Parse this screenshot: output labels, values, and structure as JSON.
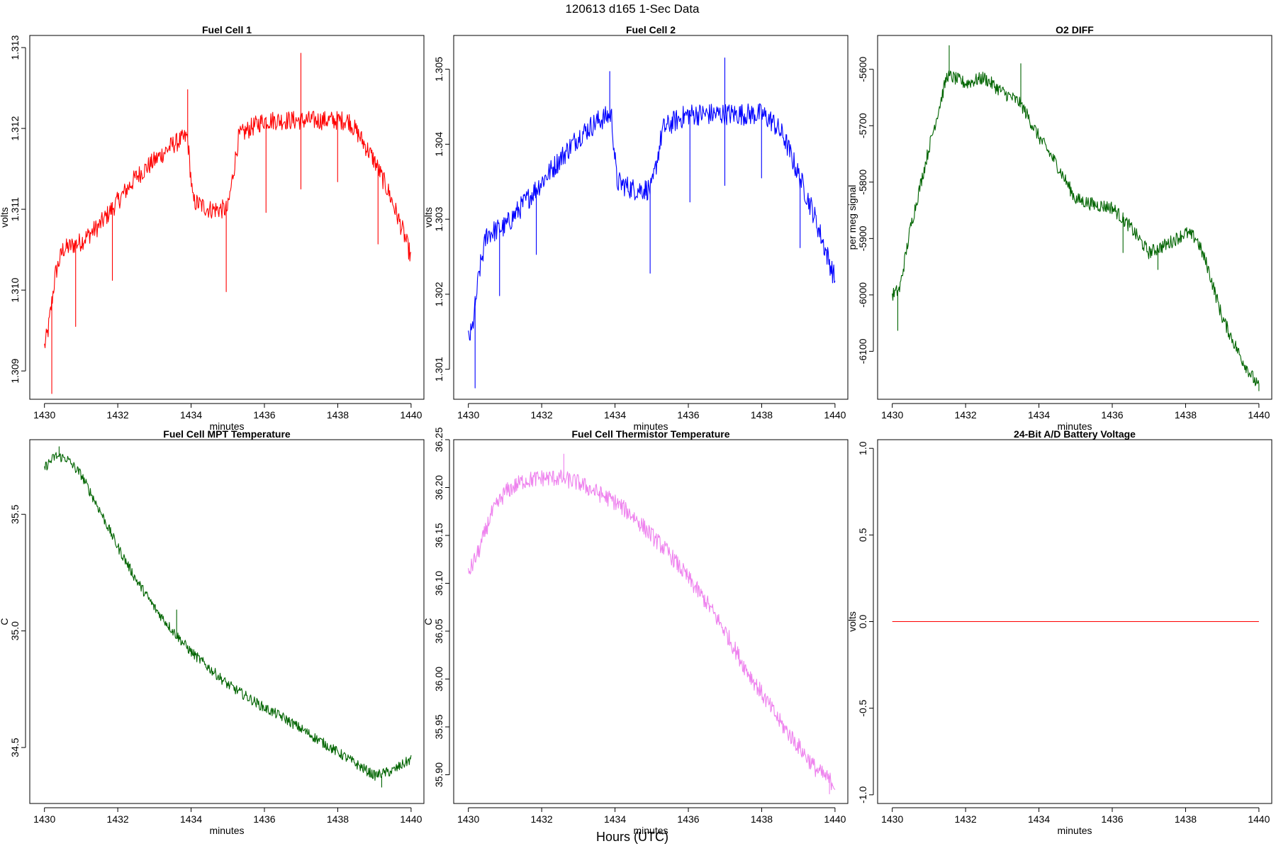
{
  "figure": {
    "title": "120613   d165   1-Sec Data",
    "xlabel": "Hours (UTC)"
  },
  "chart_data": [
    {
      "type": "line",
      "title": "Fuel Cell 1",
      "xlabel": "minutes",
      "ylabel": "volts",
      "color": "#ff0000",
      "xlim": [
        1429.6,
        1440.35
      ],
      "ylim": [
        1.30865,
        1.31315
      ],
      "xticks": [
        1430,
        1432,
        1434,
        1436,
        1438,
        1440
      ],
      "yticks": [
        1.309,
        1.31,
        1.311,
        1.312,
        1.313
      ],
      "ytick_labels": [
        "1.309",
        "1.310",
        "1.311",
        "1.312",
        "1.313"
      ],
      "x_range": [
        1430,
        1440
      ],
      "trend": {
        "x": [
          1430.0,
          1430.1,
          1430.3,
          1430.5,
          1431.0,
          1431.5,
          1432.0,
          1432.5,
          1433.0,
          1433.5,
          1433.9,
          1434.05,
          1434.5,
          1435.0,
          1435.3,
          1435.6,
          1436.0,
          1436.5,
          1437.0,
          1437.5,
          1438.0,
          1438.3,
          1438.6,
          1439.0,
          1439.4,
          1439.8,
          1440.0
        ],
        "y": [
          1.3093,
          1.3095,
          1.3102,
          1.3105,
          1.3106,
          1.3108,
          1.3111,
          1.3114,
          1.3116,
          1.3118,
          1.3119,
          1.3111,
          1.311,
          1.311,
          1.3119,
          1.312,
          1.3121,
          1.3121,
          1.3121,
          1.3121,
          1.3121,
          1.3121,
          1.3119,
          1.3116,
          1.3112,
          1.3107,
          1.3104
        ]
      },
      "noise": 0.00012,
      "spikes": [
        {
          "x": 1430.2,
          "y": 1.30872
        },
        {
          "x": 1430.85,
          "y": 1.30955
        },
        {
          "x": 1431.85,
          "y": 1.31012
        },
        {
          "x": 1433.9,
          "y": 1.31248
        },
        {
          "x": 1434.95,
          "y": 1.30998
        },
        {
          "x": 1436.05,
          "y": 1.31096
        },
        {
          "x": 1437.0,
          "y": 1.31293
        },
        {
          "x": 1437.0,
          "y": 1.31125
        },
        {
          "x": 1438.0,
          "y": 1.31134
        },
        {
          "x": 1439.1,
          "y": 1.31057
        }
      ]
    },
    {
      "type": "line",
      "title": "Fuel Cell 2",
      "xlabel": "minutes",
      "ylabel": "volts",
      "color": "#0000ff",
      "xlim": [
        1429.6,
        1440.35
      ],
      "ylim": [
        1.3006,
        1.30545
      ],
      "xticks": [
        1430,
        1432,
        1434,
        1436,
        1438,
        1440
      ],
      "yticks": [
        1.301,
        1.302,
        1.303,
        1.304,
        1.305
      ],
      "ytick_labels": [
        "1.301",
        "1.302",
        "1.303",
        "1.304",
        "1.305"
      ],
      "x_range": [
        1430,
        1440
      ],
      "trend": {
        "x": [
          1430.0,
          1430.1,
          1430.3,
          1430.5,
          1431.0,
          1431.5,
          1432.0,
          1432.5,
          1433.0,
          1433.5,
          1433.9,
          1434.05,
          1434.5,
          1435.0,
          1435.3,
          1435.6,
          1436.0,
          1436.5,
          1437.0,
          1437.5,
          1438.0,
          1438.3,
          1438.6,
          1439.0,
          1439.4,
          1439.8,
          1440.0
        ],
        "y": [
          1.3014,
          1.3015,
          1.3023,
          1.3028,
          1.3029,
          1.3032,
          1.3035,
          1.3038,
          1.3041,
          1.3043,
          1.3044,
          1.3035,
          1.3034,
          1.3034,
          1.3042,
          1.3043,
          1.3044,
          1.3044,
          1.3044,
          1.3044,
          1.3044,
          1.3043,
          1.3041,
          1.3036,
          1.3031,
          1.3025,
          1.3022
        ]
      },
      "noise": 0.00015,
      "spikes": [
        {
          "x": 1430.18,
          "y": 1.30075
        },
        {
          "x": 1430.85,
          "y": 1.30198
        },
        {
          "x": 1431.85,
          "y": 1.30253
        },
        {
          "x": 1433.85,
          "y": 1.30497
        },
        {
          "x": 1434.95,
          "y": 1.30228
        },
        {
          "x": 1436.05,
          "y": 1.30323
        },
        {
          "x": 1437.0,
          "y": 1.30515
        },
        {
          "x": 1437.0,
          "y": 1.30345
        },
        {
          "x": 1438.0,
          "y": 1.30355
        },
        {
          "x": 1439.05,
          "y": 1.30262
        }
      ]
    },
    {
      "type": "line",
      "title": "O2 DIFF",
      "xlabel": "minutes",
      "ylabel": "per meg signal",
      "color": "#006400",
      "xlim": [
        1429.6,
        1440.35
      ],
      "ylim": [
        -6185,
        -5540
      ],
      "xticks": [
        1430,
        1432,
        1434,
        1436,
        1438,
        1440
      ],
      "yticks": [
        -6100,
        -6000,
        -5900,
        -5800,
        -5700,
        -5600
      ],
      "ytick_labels": [
        "-6100",
        "-6000",
        "-5900",
        "-5800",
        "-5700",
        "-5600"
      ],
      "x_range": [
        1430,
        1440
      ],
      "trend": {
        "x": [
          1430.0,
          1430.2,
          1430.5,
          1431.0,
          1431.5,
          1432.0,
          1432.5,
          1433.0,
          1433.5,
          1434.0,
          1434.5,
          1435.0,
          1435.5,
          1436.0,
          1436.5,
          1437.0,
          1437.5,
          1438.0,
          1438.3,
          1438.6,
          1439.0,
          1439.5,
          1440.0
        ],
        "y": [
          -6000,
          -5990,
          -5880,
          -5740,
          -5610,
          -5625,
          -5615,
          -5640,
          -5660,
          -5720,
          -5770,
          -5830,
          -5840,
          -5845,
          -5880,
          -5925,
          -5910,
          -5890,
          -5900,
          -5950,
          -6040,
          -6110,
          -6165
        ]
      },
      "noise": 12,
      "spikes": [
        {
          "x": 1430.15,
          "y": -6063
        },
        {
          "x": 1431.55,
          "y": -5558
        },
        {
          "x": 1433.5,
          "y": -5590
        },
        {
          "x": 1436.3,
          "y": -5925
        },
        {
          "x": 1437.25,
          "y": -5955
        },
        {
          "x": 1440.0,
          "y": -6170
        }
      ]
    },
    {
      "type": "line",
      "title": "Fuel Cell MPT Temperature",
      "xlabel": "minutes",
      "ylabel": "C",
      "color": "#006400",
      "xlim": [
        1429.6,
        1440.35
      ],
      "ylim": [
        34.26,
        35.82
      ],
      "xticks": [
        1430,
        1432,
        1434,
        1436,
        1438,
        1440
      ],
      "yticks": [
        34.5,
        35.0,
        35.5
      ],
      "ytick_labels": [
        "34.5",
        "35.0",
        "35.5"
      ],
      "x_range": [
        1430,
        1440
      ],
      "trend": {
        "x": [
          1430.0,
          1430.3,
          1430.6,
          1431.0,
          1431.5,
          1432.0,
          1432.5,
          1433.0,
          1433.5,
          1434.0,
          1434.5,
          1435.0,
          1435.5,
          1436.0,
          1436.5,
          1437.0,
          1437.5,
          1438.0,
          1438.5,
          1439.0,
          1439.5,
          1440.0
        ],
        "y": [
          35.7,
          35.75,
          35.74,
          35.67,
          35.52,
          35.36,
          35.22,
          35.1,
          35.0,
          34.91,
          34.84,
          34.77,
          34.72,
          34.67,
          34.63,
          34.58,
          34.53,
          34.48,
          34.43,
          34.38,
          34.4,
          34.45
        ]
      },
      "noise": 0.022,
      "spikes": [
        {
          "x": 1430.4,
          "y": 35.79
        },
        {
          "x": 1433.6,
          "y": 35.09
        },
        {
          "x": 1439.2,
          "y": 34.33
        }
      ]
    },
    {
      "type": "line",
      "title": "Fuel Cell Thermistor Temperature",
      "xlabel": "minutes",
      "ylabel": "C",
      "color": "#ee82ee",
      "xlim": [
        1429.6,
        1440.35
      ],
      "ylim": [
        35.87,
        36.25
      ],
      "xticks": [
        1430,
        1432,
        1434,
        1436,
        1438,
        1440
      ],
      "yticks": [
        35.9,
        35.95,
        36.0,
        36.05,
        36.1,
        36.15,
        36.2,
        36.25
      ],
      "ytick_labels": [
        "35.90",
        "35.95",
        "36.00",
        "36.05",
        "36.10",
        "36.15",
        "36.20",
        "36.25"
      ],
      "x_range": [
        1430,
        1440
      ],
      "trend": {
        "x": [
          1430.0,
          1430.3,
          1430.6,
          1431.0,
          1431.5,
          1432.0,
          1432.5,
          1433.0,
          1433.5,
          1434.0,
          1434.5,
          1435.0,
          1435.5,
          1436.0,
          1436.5,
          1437.0,
          1437.5,
          1438.0,
          1438.5,
          1439.0,
          1439.5,
          1440.0
        ],
        "y": [
          36.11,
          36.135,
          36.17,
          36.195,
          36.207,
          36.21,
          36.21,
          36.205,
          36.195,
          36.185,
          36.17,
          36.15,
          36.13,
          36.105,
          36.08,
          36.05,
          36.015,
          35.985,
          35.955,
          35.93,
          35.905,
          35.89
        ]
      },
      "noise": 0.009,
      "spikes": [
        {
          "x": 1432.6,
          "y": 36.235
        },
        {
          "x": 1439.85,
          "y": 35.88
        }
      ]
    },
    {
      "type": "line",
      "title": "24-Bit A/D Battery Voltage",
      "xlabel": "minutes",
      "ylabel": "volts",
      "color": "#ff0000",
      "xlim": [
        1429.6,
        1440.35
      ],
      "ylim": [
        -1.05,
        1.05
      ],
      "xticks": [
        1430,
        1432,
        1434,
        1436,
        1438,
        1440
      ],
      "yticks": [
        -1.0,
        -0.5,
        0.0,
        0.5,
        1.0
      ],
      "ytick_labels": [
        "-1.0",
        "-0.5",
        "0.0",
        "0.5",
        "1.0"
      ],
      "x_range": [
        1430,
        1440
      ],
      "trend": {
        "x": [
          1430.0,
          1440.0
        ],
        "y": [
          0.0,
          0.0
        ]
      },
      "noise": 0,
      "spikes": []
    }
  ]
}
